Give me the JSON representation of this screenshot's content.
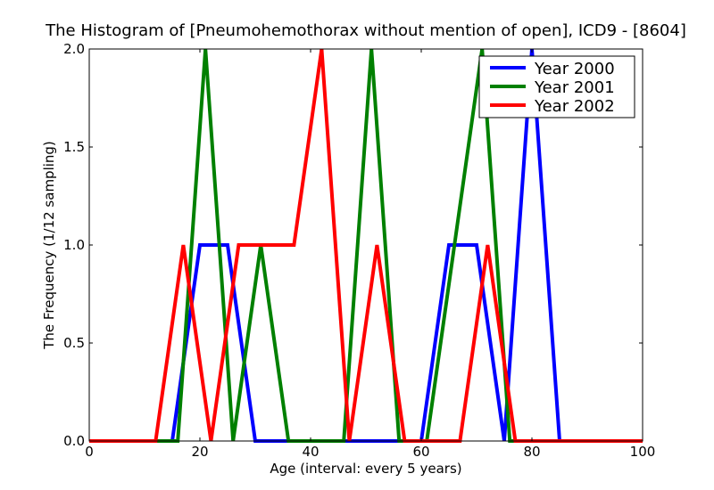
{
  "chart_data": {
    "type": "line",
    "title": "The Histogram of [Pneumohemothorax without mention of open], ICD9 - [8604]",
    "xlabel": "Age (interval: every 5 years)",
    "ylabel": "The Frequency (1/12 sampling)",
    "xlim": [
      0,
      100
    ],
    "ylim": [
      0,
      2.0
    ],
    "x_ticks": [
      0,
      20,
      40,
      60,
      80,
      100
    ],
    "y_ticks": [
      0.0,
      0.5,
      1.0,
      1.5,
      2.0
    ],
    "x_tick_labels": [
      "0",
      "20",
      "40",
      "60",
      "80",
      "100"
    ],
    "y_tick_labels": [
      "0.0",
      "0.5",
      "1.0",
      "1.5",
      "2.0"
    ],
    "grid": false,
    "legend_position": "top-right",
    "series": [
      {
        "name": "Year 2000",
        "color": "#0000ff",
        "x": [
          0,
          15,
          20,
          25,
          30,
          35,
          40,
          45,
          50,
          55,
          60,
          65,
          70,
          75,
          80,
          85,
          90,
          95,
          100
        ],
        "y": [
          0,
          0,
          1,
          1,
          0,
          0,
          0,
          0,
          0,
          0,
          0,
          1,
          1,
          0,
          2,
          0,
          0,
          0,
          0
        ]
      },
      {
        "name": "Year 2001",
        "color": "#008000",
        "x": [
          0,
          16,
          21,
          26,
          31,
          36,
          41,
          46,
          51,
          56,
          61,
          66,
          71,
          76,
          81,
          86,
          91,
          96,
          100
        ],
        "y": [
          0,
          0,
          2,
          0,
          1,
          0,
          0,
          0,
          2,
          0,
          0,
          1,
          2,
          0,
          0,
          0,
          0,
          0,
          0
        ]
      },
      {
        "name": "Year 2002",
        "color": "#ff0000",
        "x": [
          0,
          12,
          17,
          22,
          27,
          32,
          37,
          42,
          47,
          52,
          57,
          62,
          67,
          72,
          77,
          82,
          87,
          92,
          97,
          100
        ],
        "y": [
          0,
          0,
          1,
          0,
          1,
          1,
          1,
          2,
          0,
          1,
          0,
          0,
          0,
          1,
          0,
          0,
          0,
          0,
          0,
          0
        ]
      }
    ]
  }
}
